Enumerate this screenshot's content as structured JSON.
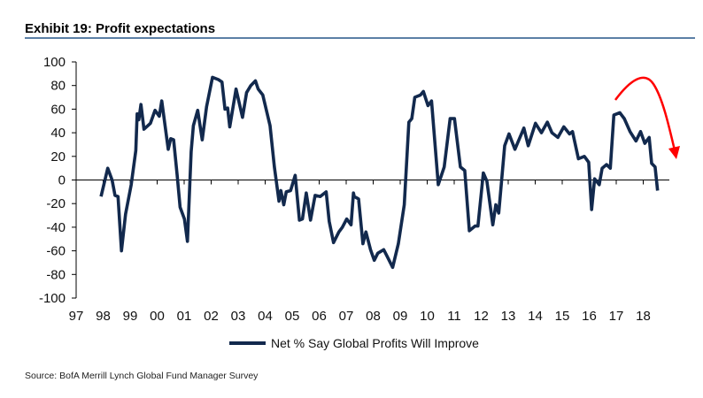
{
  "title": "Exhibit 19: Profit expectations",
  "source": "Source:  BofA Merrill Lynch Global Fund Manager Survey",
  "colors": {
    "series": "#12294d",
    "annotation": "#ff0000",
    "rule": "#5b7fa6"
  },
  "chart_data": {
    "type": "line",
    "title": "Exhibit 19: Profit expectations",
    "xlabel": "",
    "ylabel": "",
    "ylim": [
      -100,
      100
    ],
    "xlim": [
      1997,
      2019
    ],
    "yticks": [
      "100",
      "80",
      "60",
      "40",
      "20",
      "0",
      "-20",
      "-40",
      "-60",
      "-80",
      "-100"
    ],
    "xticks": [
      "97",
      "98",
      "99",
      "00",
      "01",
      "02",
      "03",
      "04",
      "05",
      "06",
      "07",
      "08",
      "09",
      "10",
      "11",
      "12",
      "13",
      "14",
      "15",
      "16",
      "17",
      "18"
    ],
    "legend": {
      "position": "bottom",
      "entries": [
        "Net % Say Global Profits Will Improve"
      ]
    },
    "annotation": "red downward arrow over 2017-2018 peak",
    "series": [
      {
        "name": "Net % Say Global Profits Will Improve",
        "x": [
          1997.92,
          1998.17,
          1998.33,
          1998.44,
          1998.55,
          1998.68,
          1998.83,
          1999.04,
          1999.21,
          1999.26,
          1999.32,
          1999.4,
          1999.51,
          1999.75,
          1999.92,
          2000.08,
          2000.17,
          2000.41,
          2000.5,
          2000.61,
          2000.74,
          2000.85,
          2001.01,
          2001.12,
          2001.26,
          2001.34,
          2001.5,
          2001.67,
          2001.83,
          2002.05,
          2002.27,
          2002.4,
          2002.51,
          2002.61,
          2002.69,
          2002.92,
          2003.16,
          2003.31,
          2003.47,
          2003.64,
          2003.74,
          2003.91,
          2004.18,
          2004.34,
          2004.51,
          2004.58,
          2004.69,
          2004.78,
          2004.94,
          2005.11,
          2005.27,
          2005.38,
          2005.52,
          2005.68,
          2005.85,
          2006.04,
          2006.26,
          2006.37,
          2006.53,
          2006.73,
          2006.86,
          2007.02,
          2007.18,
          2007.27,
          2007.3,
          2007.46,
          2007.62,
          2007.73,
          2007.9,
          2008.04,
          2008.17,
          2008.39,
          2008.5,
          2008.72,
          2008.93,
          2009.15,
          2009.32,
          2009.43,
          2009.54,
          2009.75,
          2009.86,
          2010.03,
          2010.16,
          2010.41,
          2010.63,
          2010.85,
          2011.01,
          2011.23,
          2011.39,
          2011.56,
          2011.77,
          2011.88,
          2012.08,
          2012.21,
          2012.43,
          2012.54,
          2012.65,
          2012.87,
          2013.03,
          2013.25,
          2013.58,
          2013.74,
          2014.01,
          2014.23,
          2014.45,
          2014.62,
          2014.84,
          2015.06,
          2015.27,
          2015.38,
          2015.6,
          2015.82,
          2015.98,
          2016.09,
          2016.2,
          2016.37,
          2016.48,
          2016.64,
          2016.78,
          2016.91,
          2017.13,
          2017.3,
          2017.51,
          2017.73,
          2017.9,
          2018.06,
          2018.22,
          2018.31,
          2018.44,
          2018.53
        ],
        "y": [
          -14,
          10,
          0,
          -13,
          -14,
          -60,
          -29,
          -4,
          25,
          56,
          51,
          64,
          43,
          48,
          59,
          54,
          67,
          26,
          35,
          34,
          4,
          -23,
          -33,
          -52,
          24,
          46,
          59,
          34,
          62,
          87,
          85,
          83,
          60,
          61,
          45,
          77,
          53,
          74,
          80,
          84,
          77,
          72,
          46,
          11,
          -18,
          -9,
          -21,
          -10,
          -9,
          4,
          -34,
          -33,
          -11,
          -34,
          -13,
          -14,
          -10,
          -35,
          -53,
          -44,
          -40,
          -33,
          -38,
          -11,
          -14,
          -16,
          -54,
          -44,
          -59,
          -68,
          -62,
          -59,
          -64,
          -74,
          -54,
          -21,
          49,
          52,
          70,
          72,
          75,
          63,
          67,
          -4,
          11,
          52,
          52,
          11,
          8,
          -43,
          -39,
          -39,
          6,
          -1,
          -38,
          -21,
          -28,
          29,
          39,
          26,
          44,
          29,
          48,
          40,
          49,
          40,
          36,
          45,
          39,
          41,
          18,
          20,
          15,
          -25,
          1,
          -4,
          10,
          13,
          10,
          55,
          57,
          52,
          41,
          33,
          41,
          31,
          36,
          14,
          11,
          -9
        ]
      }
    ]
  }
}
